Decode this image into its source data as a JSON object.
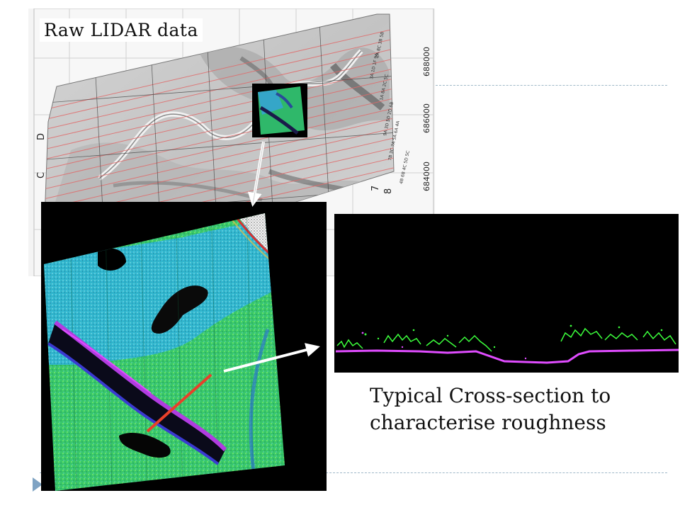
{
  "slide": {
    "caption_raw": "Raw LIDAR data",
    "caption_cross": {
      "line1": "Typical Cross-section to",
      "line2": "characterise roughness"
    }
  },
  "map": {
    "northing_labels": [
      "688000",
      "686000",
      "684000"
    ],
    "row_letters": [
      "D",
      "C"
    ],
    "column_numbers": [
      "7",
      "8"
    ],
    "strip_labels": [
      "3A 1D 1F 9A",
      "2A 8C 3B 5B",
      "1A 8A 2C 5C",
      "9A 3D 5D 2D 6B",
      "7B 3C 7A 5A 6A 4A",
      "4B 6B 4C 5D 5C"
    ]
  },
  "colors": {
    "accent_rule": "#9fb8c8",
    "bullet": "#7fa3c3",
    "ground_return": "#e04cff",
    "vegetation_return": "#3cff3c",
    "transect": "#e8402a",
    "flight_lines": "#e06a6a"
  },
  "icons": {
    "bullet": "triangle-bullet-icon",
    "pointer_arrow": "arrow-icon"
  }
}
